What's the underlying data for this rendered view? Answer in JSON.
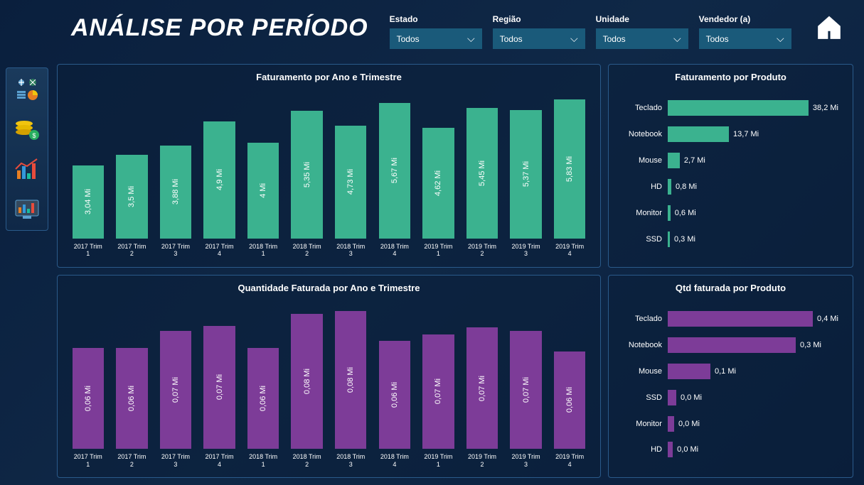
{
  "title": "ANÁLISE POR PERÍODO",
  "filters": [
    {
      "label": "Estado",
      "value": "Todos"
    },
    {
      "label": "Região",
      "value": "Todos"
    },
    {
      "label": "Unidade",
      "value": "Todos"
    },
    {
      "label": "Vendedor (a)",
      "value": "Todos"
    }
  ],
  "colors": {
    "green": "#3bb28f",
    "purple": "#7d3c98",
    "bg_panel": "rgba(10,30,55,0.5)"
  },
  "chart1": {
    "title": "Faturamento por Ano e Trimestre",
    "type": "bar",
    "color": "#3bb28f",
    "max": 6.0,
    "bars": [
      {
        "x1": "2017 Trim",
        "x2": "1",
        "v": 3.04,
        "label": "3,04 Mi"
      },
      {
        "x1": "2017 Trim",
        "x2": "2",
        "v": 3.5,
        "label": "3,5 Mi"
      },
      {
        "x1": "2017 Trim",
        "x2": "3",
        "v": 3.88,
        "label": "3,88 Mi"
      },
      {
        "x1": "2017 Trim",
        "x2": "4",
        "v": 4.9,
        "label": "4,9 Mi"
      },
      {
        "x1": "2018 Trim",
        "x2": "1",
        "v": 4.0,
        "label": "4 Mi"
      },
      {
        "x1": "2018 Trim",
        "x2": "2",
        "v": 5.35,
        "label": "5,35 Mi"
      },
      {
        "x1": "2018 Trim",
        "x2": "3",
        "v": 4.73,
        "label": "4,73 Mi"
      },
      {
        "x1": "2018 Trim",
        "x2": "4",
        "v": 5.67,
        "label": "5,67 Mi"
      },
      {
        "x1": "2019 Trim",
        "x2": "1",
        "v": 4.62,
        "label": "4,62 Mi"
      },
      {
        "x1": "2019 Trim",
        "x2": "2",
        "v": 5.45,
        "label": "5,45 Mi"
      },
      {
        "x1": "2019 Trim",
        "x2": "3",
        "v": 5.37,
        "label": "5,37 Mi"
      },
      {
        "x1": "2019 Trim",
        "x2": "4",
        "v": 5.83,
        "label": "5,83 Mi"
      }
    ]
  },
  "chart2": {
    "title": "Faturamento por Produto",
    "type": "hbar",
    "color": "#3bb28f",
    "max": 38.2,
    "bars": [
      {
        "cat": "Teclado",
        "v": 38.2,
        "label": "38,2 Mi"
      },
      {
        "cat": "Notebook",
        "v": 13.7,
        "label": "13,7 Mi"
      },
      {
        "cat": "Mouse",
        "v": 2.7,
        "label": "2,7 Mi"
      },
      {
        "cat": "HD",
        "v": 0.8,
        "label": "0,8 Mi"
      },
      {
        "cat": "Monitor",
        "v": 0.6,
        "label": "0,6 Mi"
      },
      {
        "cat": "SSD",
        "v": 0.3,
        "label": "0,3 Mi"
      }
    ]
  },
  "chart3": {
    "title": "Quantidade Faturada por Ano e Trimestre",
    "type": "bar",
    "color": "#7d3c98",
    "max": 0.085,
    "bars": [
      {
        "x1": "2017 Trim",
        "x2": "1",
        "v": 0.06,
        "label": "0,06 Mi"
      },
      {
        "x1": "2017 Trim",
        "x2": "2",
        "v": 0.06,
        "label": "0,06 Mi"
      },
      {
        "x1": "2017 Trim",
        "x2": "3",
        "v": 0.07,
        "label": "0,07 Mi"
      },
      {
        "x1": "2017 Trim",
        "x2": "4",
        "v": 0.073,
        "label": "0,07 Mi"
      },
      {
        "x1": "2018 Trim",
        "x2": "1",
        "v": 0.06,
        "label": "0,06 Mi"
      },
      {
        "x1": "2018 Trim",
        "x2": "2",
        "v": 0.08,
        "label": "0,08 Mi"
      },
      {
        "x1": "2018 Trim",
        "x2": "3",
        "v": 0.082,
        "label": "0,08 Mi"
      },
      {
        "x1": "2018 Trim",
        "x2": "4",
        "v": 0.064,
        "label": "0,06 Mi"
      },
      {
        "x1": "2019 Trim",
        "x2": "1",
        "v": 0.068,
        "label": "0,07 Mi"
      },
      {
        "x1": "2019 Trim",
        "x2": "2",
        "v": 0.072,
        "label": "0,07 Mi"
      },
      {
        "x1": "2019 Trim",
        "x2": "3",
        "v": 0.07,
        "label": "0,07 Mi"
      },
      {
        "x1": "2019 Trim",
        "x2": "4",
        "v": 0.058,
        "label": "0,06 Mi"
      }
    ]
  },
  "chart4": {
    "title": "Qtd faturada por Produto",
    "type": "hbar",
    "color": "#7d3c98",
    "max": 0.4,
    "bars": [
      {
        "cat": "Teclado",
        "v": 0.4,
        "label": "0,4 Mi"
      },
      {
        "cat": "Notebook",
        "v": 0.3,
        "label": "0,3 Mi"
      },
      {
        "cat": "Mouse",
        "v": 0.1,
        "label": "0,1 Mi"
      },
      {
        "cat": "SSD",
        "v": 0.02,
        "label": "0,0 Mi"
      },
      {
        "cat": "Monitor",
        "v": 0.015,
        "label": "0,0 Mi"
      },
      {
        "cat": "HD",
        "v": 0.012,
        "label": "0,0 Mi"
      }
    ]
  }
}
